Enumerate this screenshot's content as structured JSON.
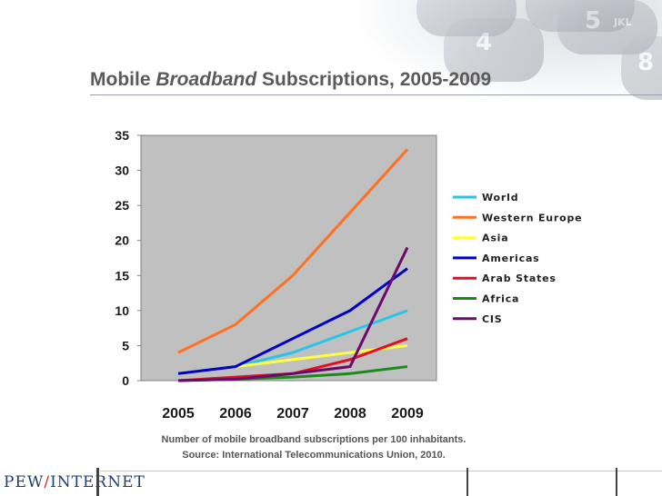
{
  "title": {
    "part1": "Mobile ",
    "part2": "Broadband",
    "part3": " Subscriptions, 2005-2009"
  },
  "caption": {
    "line1": "Number of mobile broadband subscriptions per 100 inhabitants.",
    "line2": "Source: International Telecommunications Union, 2010."
  },
  "logo": {
    "left": "PEW",
    "slash": "/",
    "right": "INTERNET"
  },
  "keypad": {
    "k1": "4",
    "k2": "5",
    "k3": "8",
    "k4": "JKL"
  },
  "chart_data": {
    "type": "line",
    "title": "",
    "xlabel": "",
    "ylabel": "",
    "x": [
      "2005",
      "2006",
      "2007",
      "2008",
      "2009"
    ],
    "ylim": [
      0,
      35
    ],
    "yticks": [
      "0",
      "5",
      "10",
      "15",
      "20",
      "25",
      "30",
      "35"
    ],
    "grid": false,
    "legend_position": "right",
    "plot_background": "#c0c0c0",
    "series": [
      {
        "name": "World",
        "color": "#26c6e8",
        "values": [
          1,
          2,
          4,
          7,
          10
        ]
      },
      {
        "name": "Western Europe",
        "color": "#ff7020",
        "values": [
          4,
          8,
          15,
          24,
          33
        ]
      },
      {
        "name": "Asia",
        "color": "#ffff40",
        "values": [
          1,
          2,
          3,
          4,
          5
        ]
      },
      {
        "name": "Americas",
        "color": "#0000c8",
        "values": [
          1,
          2,
          6,
          10,
          16
        ]
      },
      {
        "name": "Arab States",
        "color": "#e01020",
        "values": [
          0,
          0.5,
          1,
          3,
          6
        ]
      },
      {
        "name": "Africa",
        "color": "#1a8a1a",
        "values": [
          0,
          0.2,
          0.5,
          1,
          2
        ]
      },
      {
        "name": "CIS",
        "color": "#6a0a6a",
        "values": [
          0,
          0.2,
          1,
          2,
          19
        ]
      }
    ]
  }
}
